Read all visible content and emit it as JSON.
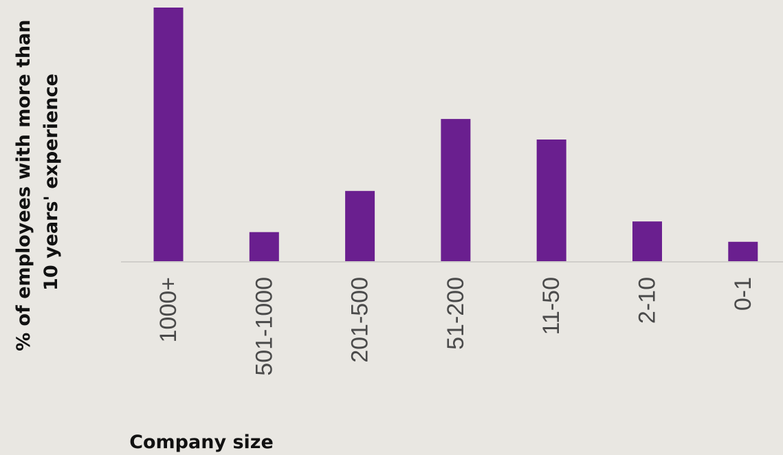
{
  "chart_data": {
    "type": "bar",
    "categories": [
      "1000+",
      "501-1000",
      "201-500",
      "51-200",
      "11-50",
      "2-10",
      "0-1"
    ],
    "values": [
      100,
      11.7,
      27.9,
      56.2,
      48.1,
      15.9,
      7.9
    ],
    "ylabel_lines": [
      "% of employees with more than",
      "10 years' experience"
    ],
    "xlabel": "Company size",
    "ylim": [
      0,
      100
    ],
    "grid": false,
    "bar_color": "#6a1f8f",
    "axis_color": "#d0ceca",
    "tick_color": "#4a4a4a",
    "label_color": "#111111",
    "background": "#e9e7e2"
  }
}
